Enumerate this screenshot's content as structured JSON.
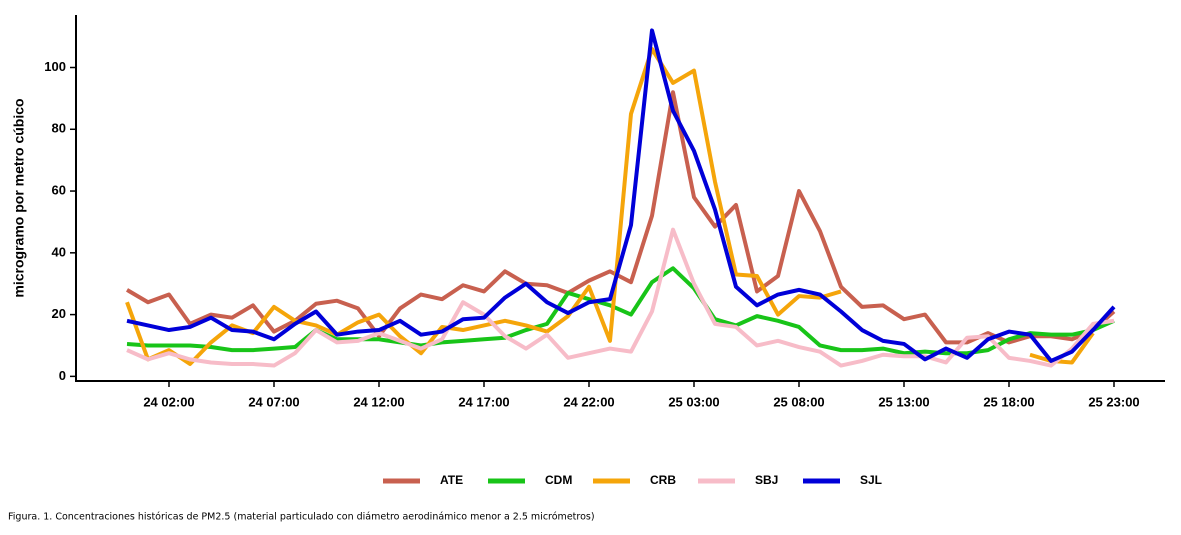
{
  "chart_data": {
    "type": "line",
    "y_label": "microgramo por metro cúbico",
    "caption": "Figura. 1. Concentraciones históricas de PM2.5 (material particulado con diámetro aerodinámico menor a 2.5 micrómetros)",
    "categories": [
      null,
      null,
      "24 02:00",
      null,
      null,
      null,
      null,
      "24 07:00",
      null,
      null,
      null,
      null,
      "24 12:00",
      null,
      null,
      null,
      null,
      "24 17:00",
      null,
      null,
      null,
      null,
      "24 22:00",
      null,
      null,
      null,
      null,
      "25 03:00",
      null,
      null,
      null,
      null,
      "25 08:00",
      null,
      null,
      null,
      null,
      "25 13:00",
      null,
      null,
      null,
      null,
      "25 18:00",
      null,
      null,
      null,
      null,
      "25 23:00"
    ],
    "ylim": [
      -1.5,
      117
    ],
    "yticks": [
      0,
      20,
      40,
      60,
      80,
      100
    ],
    "legend": "bottom",
    "series": [
      {
        "name": "ATE",
        "color": "#c8604f",
        "values": [
          28,
          24,
          26.5,
          17,
          20,
          19,
          23,
          14.5,
          18,
          23.5,
          24.5,
          22,
          13,
          22,
          26.5,
          25,
          29.5,
          27.5,
          34,
          30,
          29.5,
          27,
          31,
          34,
          30.5,
          52,
          92,
          58,
          48.5,
          55.5,
          27.5,
          32.5,
          60,
          47,
          29,
          22.5,
          23,
          18.5,
          20,
          11,
          11,
          14,
          11,
          13,
          13,
          12,
          15,
          21
        ]
      },
      {
        "name": "CDM",
        "color": "#18c418",
        "values": [
          10.5,
          10,
          10,
          10,
          9.5,
          8.5,
          8.5,
          9,
          9.5,
          15,
          12,
          12,
          12,
          11,
          10,
          11,
          11.5,
          12,
          12.5,
          15,
          17,
          27,
          25,
          23,
          20,
          30.5,
          35,
          28.5,
          18.5,
          16.5,
          19.5,
          18,
          16,
          10,
          8.5,
          8.5,
          9,
          7.5,
          8,
          7.5,
          7.5,
          8.5,
          12,
          14,
          13.5,
          13.5,
          15,
          18
        ]
      },
      {
        "name": "CRB",
        "color": "#f5a50a",
        "values": [
          24,
          5.5,
          8.5,
          4,
          11,
          16.5,
          14,
          22.5,
          18,
          16.5,
          13.5,
          17.5,
          20,
          13,
          7.5,
          16,
          15,
          16.5,
          18,
          16.5,
          14.5,
          19.5,
          29,
          11.5,
          85,
          106,
          95,
          99,
          63,
          33,
          32.5,
          20,
          26,
          25.5,
          27.5,
          null,
          null,
          null,
          null,
          null,
          null,
          null,
          null,
          7,
          5,
          4.5,
          14,
          null
        ]
      },
      {
        "name": "SBJ",
        "color": "#f7bcc8",
        "values": [
          8.5,
          5.5,
          7.5,
          5.5,
          4.5,
          4,
          4,
          3.5,
          7.5,
          15,
          11,
          11.5,
          14,
          11.5,
          9,
          12,
          24,
          20,
          13,
          9,
          13.5,
          6,
          7.5,
          9,
          8,
          21,
          47.5,
          30,
          17,
          16,
          10,
          11.5,
          9.5,
          8,
          3.5,
          5,
          7,
          6.5,
          6.5,
          4.5,
          12.5,
          13,
          6,
          5,
          3.5,
          9,
          17,
          18
        ]
      },
      {
        "name": "SJL",
        "color": "#0000d8",
        "values": [
          18,
          16.5,
          15,
          16,
          19,
          15,
          14.5,
          12,
          17,
          21,
          13.5,
          14.5,
          15,
          18,
          13.5,
          14.5,
          18.5,
          19,
          25.5,
          30,
          24,
          20.5,
          24,
          25,
          49,
          112,
          86,
          73,
          54,
          29,
          23,
          26.5,
          28,
          26.5,
          21,
          15,
          11.5,
          10.5,
          5.5,
          9,
          6,
          12,
          14.5,
          13.5,
          5,
          8,
          15,
          22.5
        ]
      }
    ]
  }
}
